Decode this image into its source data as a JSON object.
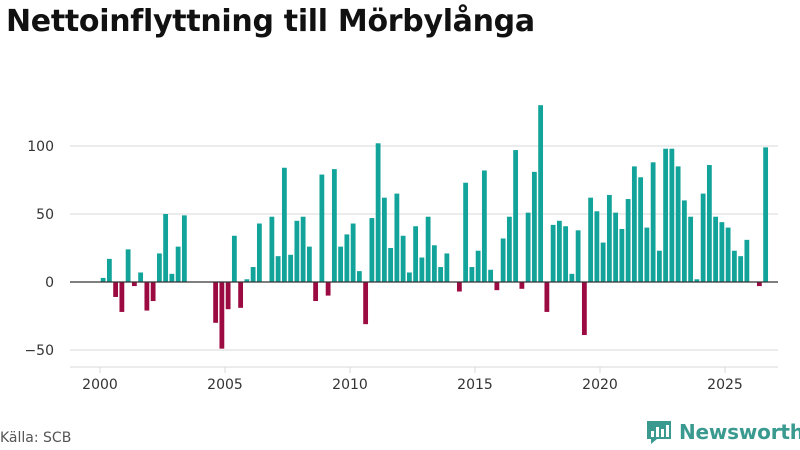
{
  "title": "Nettoinflyttning till Mörbylånga",
  "source": "Källa: SCB",
  "brand": "Newsworthy",
  "colors": {
    "positive": "#12a39a",
    "negative": "#9b0a40",
    "grid": "#d9d9d9",
    "axis": "#333333",
    "brand": "#3a9a8f"
  },
  "chart_data": {
    "type": "bar",
    "title": "Nettoinflyttning till Mörbylånga",
    "xlabel": "",
    "ylabel": "",
    "ylim": [
      -55,
      135
    ],
    "xlim": [
      1999.5,
      2027.0
    ],
    "x_ticks": [
      "2000",
      "2005",
      "2010",
      "2015",
      "2020",
      "2025"
    ],
    "y_ticks": [
      "−50",
      "0",
      "50",
      "100"
    ],
    "y_tick_values": [
      -50,
      0,
      50,
      100
    ],
    "x_tick_values": [
      2000,
      2005,
      2010,
      2015,
      2020,
      2025
    ],
    "start": [
      2000,
      1
    ],
    "period": "month-of-quarter",
    "values": [
      3,
      17,
      -11,
      -22,
      24,
      -3,
      7,
      -21,
      -14,
      21,
      50,
      6,
      26,
      49,
      0,
      0,
      0,
      0,
      -30,
      -49,
      -20,
      34,
      -19,
      2,
      11,
      43,
      0,
      48,
      19,
      84,
      20,
      45,
      48,
      26,
      -14,
      79,
      -10,
      83,
      26,
      35,
      43,
      8,
      -31,
      47,
      102,
      62,
      25,
      65,
      34,
      7,
      41,
      18,
      48,
      27,
      11,
      21,
      0,
      -7,
      73,
      11,
      23,
      82,
      9,
      -6,
      32,
      48,
      97,
      -5,
      51,
      81,
      130,
      -22,
      42,
      45,
      41,
      6,
      38,
      -39,
      62,
      52,
      29,
      64,
      51,
      39,
      61,
      85,
      77,
      40,
      88,
      23,
      98,
      98,
      85,
      60,
      48,
      2,
      65,
      86,
      48,
      44,
      40,
      23,
      19,
      31,
      0,
      -3,
      99
    ]
  }
}
